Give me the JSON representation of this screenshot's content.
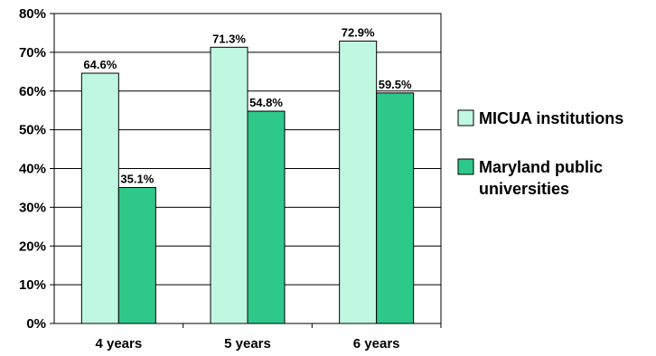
{
  "chart_data": {
    "type": "bar",
    "categories": [
      "4 years",
      "5 years",
      "6 years"
    ],
    "series": [
      {
        "name": "MICUA institutions",
        "values": [
          64.6,
          71.3,
          72.9
        ],
        "color": "#bff7e0"
      },
      {
        "name": "Maryland public universities",
        "values": [
          35.1,
          54.8,
          59.5
        ],
        "color": "#2ec98a"
      }
    ],
    "data_labels": [
      [
        "64.6%",
        "71.3%",
        "72.9%"
      ],
      [
        "35.1%",
        "54.8%",
        "59.5%"
      ]
    ],
    "ylim": [
      0,
      80
    ],
    "yticks": [
      "0%",
      "10%",
      "20%",
      "30%",
      "40%",
      "50%",
      "60%",
      "70%",
      "80%"
    ],
    "grid": true,
    "legend": {
      "position": "right",
      "entries": [
        [
          "MICUA institutions"
        ],
        [
          "Maryland public",
          "universities"
        ]
      ]
    },
    "title": "",
    "xlabel": "",
    "ylabel": ""
  }
}
